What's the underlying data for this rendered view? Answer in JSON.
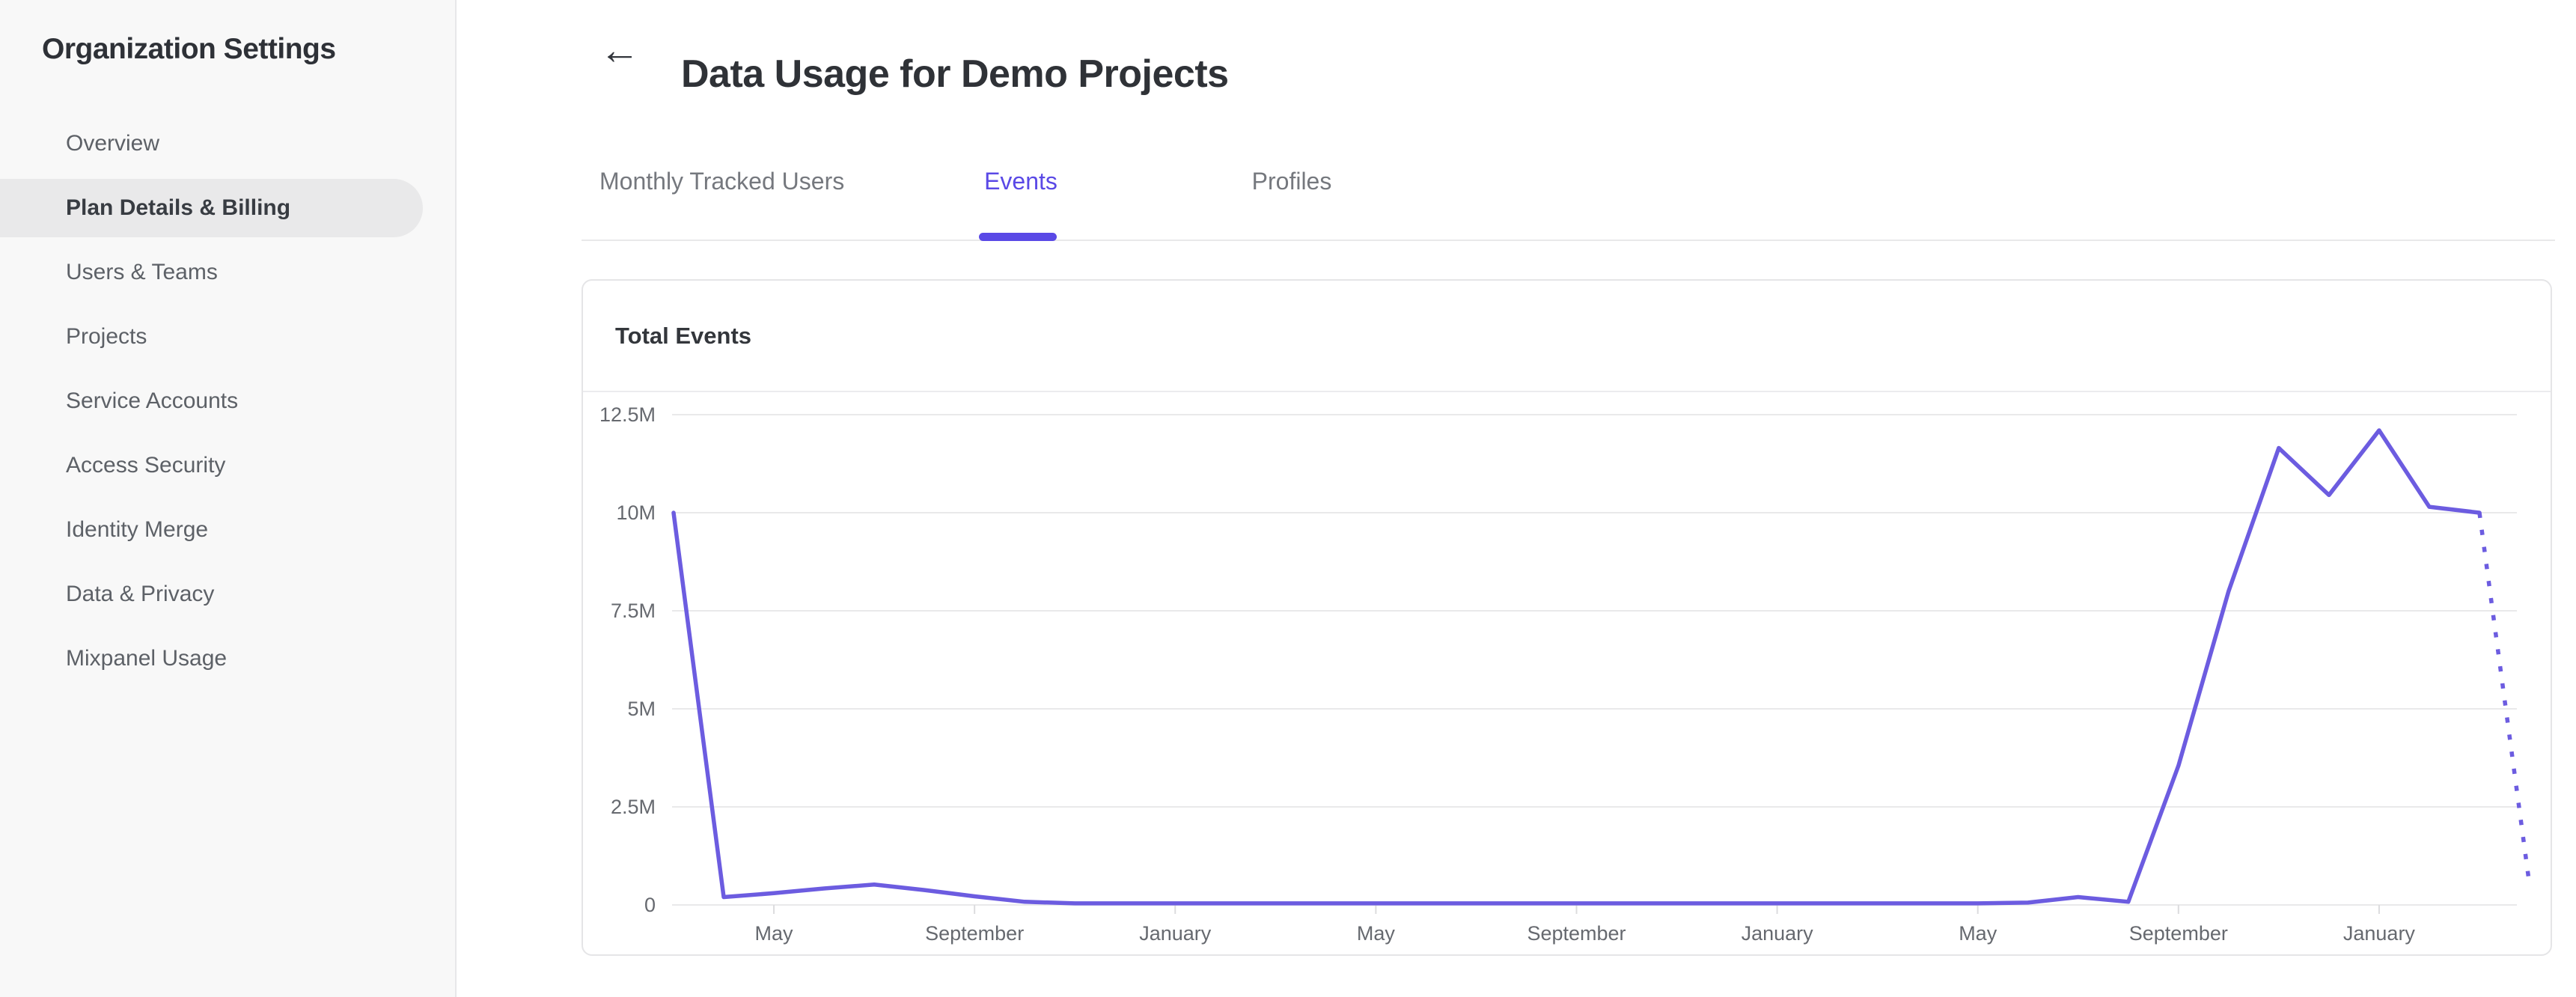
{
  "sidebar": {
    "title": "Organization Settings",
    "items": [
      {
        "label": "Overview",
        "selected": false
      },
      {
        "label": "Plan Details & Billing",
        "selected": true
      },
      {
        "label": "Users & Teams",
        "selected": false
      },
      {
        "label": "Projects",
        "selected": false
      },
      {
        "label": "Service Accounts",
        "selected": false
      },
      {
        "label": "Access Security",
        "selected": false
      },
      {
        "label": "Identity Merge",
        "selected": false
      },
      {
        "label": "Data & Privacy",
        "selected": false
      },
      {
        "label": "Mixpanel Usage",
        "selected": false
      }
    ]
  },
  "header": {
    "back_icon": "←",
    "title": "Data Usage for Demo Projects"
  },
  "tabs": [
    {
      "label": "Monthly Tracked Users",
      "active": false
    },
    {
      "label": "Events",
      "active": true
    },
    {
      "label": "Profiles",
      "active": false
    }
  ],
  "card": {
    "title": "Total Events"
  },
  "colors": {
    "accent": "#5a49e6",
    "line": "#6c5ce0",
    "grid": "#e9e9ea",
    "axis_tick": "#dcdcde",
    "axis_text": "#66696f"
  },
  "chart_data": {
    "type": "line",
    "title": "Total Events",
    "ylim_millions": [
      0,
      12.5
    ],
    "y_tick_values": [
      0,
      2.5,
      5,
      7.5,
      10,
      12.5
    ],
    "y_tick_labels": [
      "0",
      "2.5M",
      "5M",
      "7.5M",
      "10M",
      "12.5M"
    ],
    "x_tick_labels": [
      "May",
      "September",
      "January",
      "May",
      "September",
      "January",
      "May",
      "September",
      "January"
    ],
    "x_tick_indices": [
      2,
      6,
      10,
      14,
      18,
      22,
      26,
      30,
      34
    ],
    "points_monthly_millions": [
      10.0,
      0.2,
      0.3,
      0.42,
      0.52,
      0.38,
      0.22,
      0.08,
      0.04,
      0.04,
      0.04,
      0.04,
      0.04,
      0.04,
      0.04,
      0.04,
      0.04,
      0.04,
      0.04,
      0.04,
      0.04,
      0.04,
      0.04,
      0.04,
      0.04,
      0.04,
      0.04,
      0.06,
      0.2,
      0.08,
      3.55,
      8.0,
      11.65,
      10.45,
      12.1,
      10.15,
      10.0,
      0.5
    ],
    "projected_last_segment_dotted": true,
    "legend": "none",
    "grid": "horizontal"
  }
}
